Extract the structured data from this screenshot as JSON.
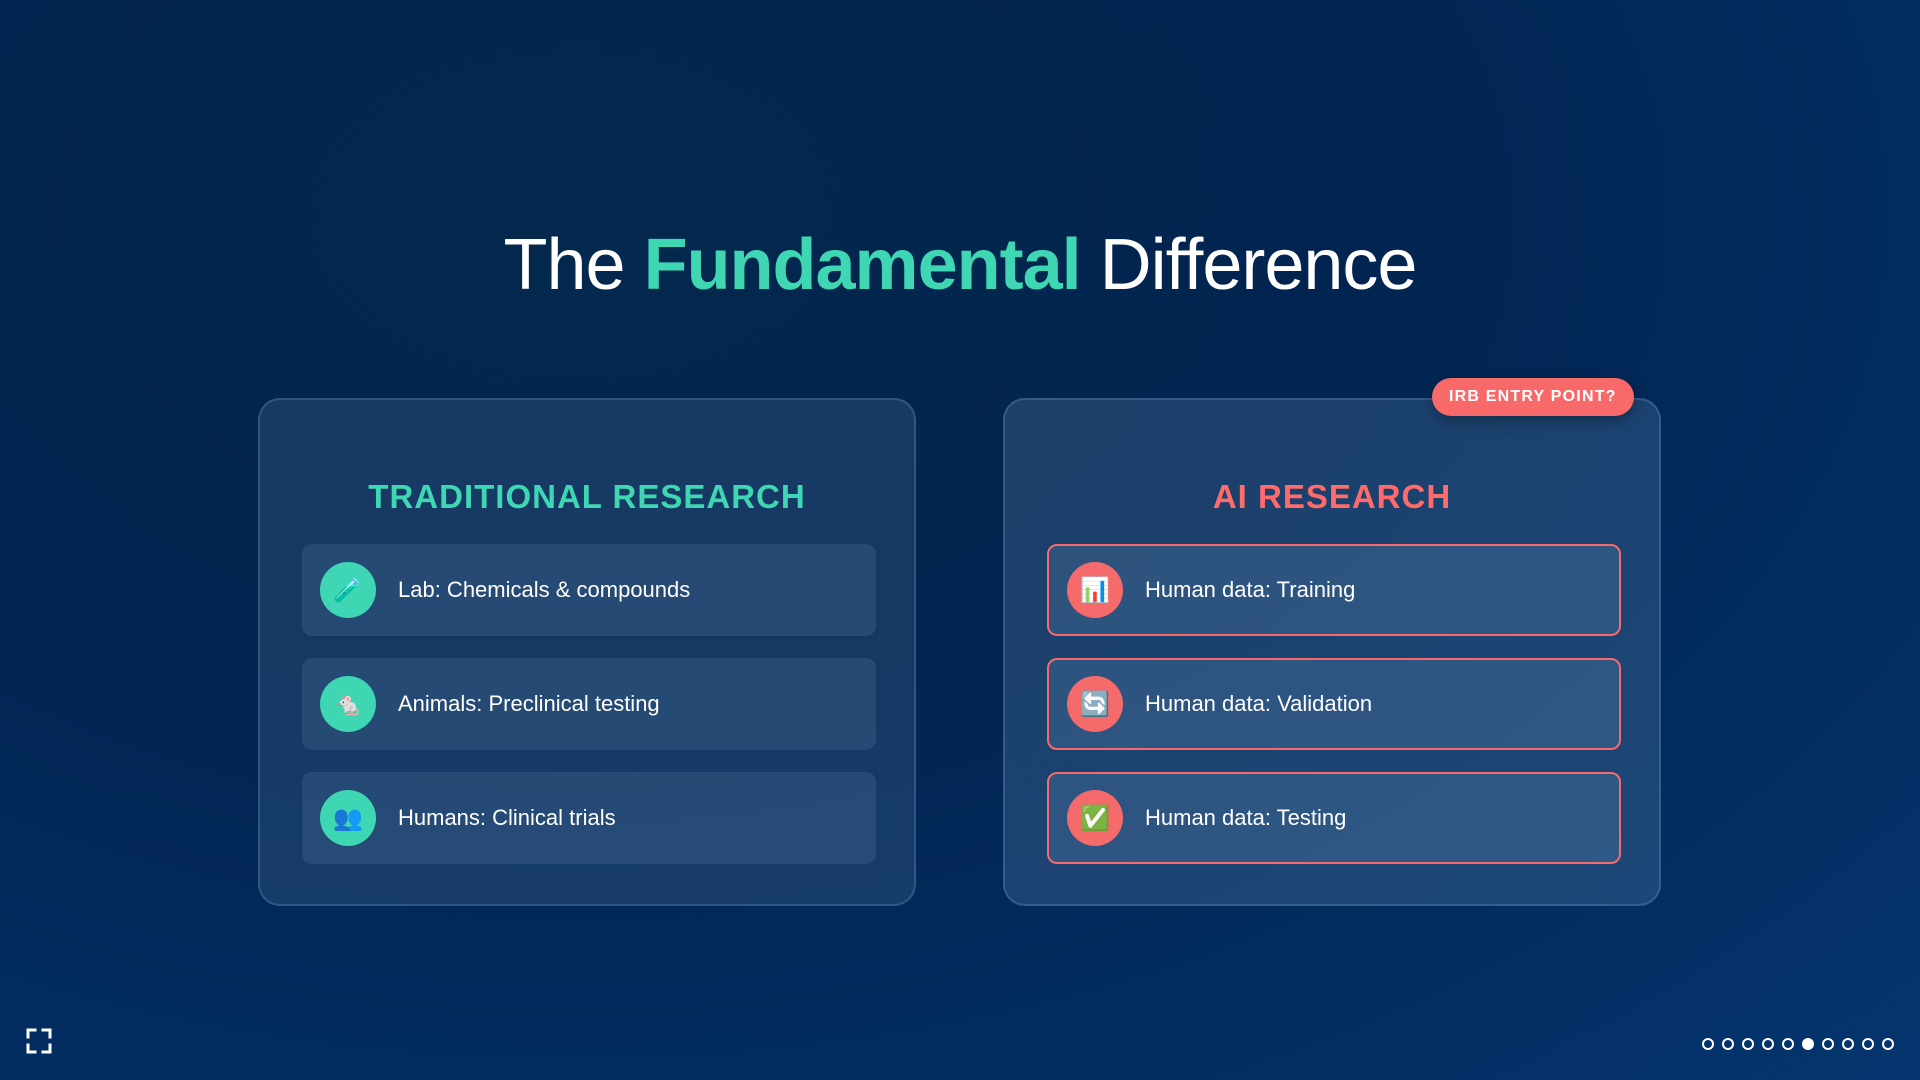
{
  "title": {
    "part1": "The ",
    "accent": "Fundamental",
    "part2": " Difference"
  },
  "traditional": {
    "heading": "TRADITIONAL RESEARCH",
    "items": [
      {
        "icon": "test-tube-icon",
        "glyph": "🧪",
        "label": "Lab: Chemicals & compounds"
      },
      {
        "icon": "rat-icon",
        "glyph": "🐁",
        "label": "Animals: Preclinical testing"
      },
      {
        "icon": "people-icon",
        "glyph": "👥",
        "label": "Humans: Clinical trials"
      }
    ]
  },
  "ai": {
    "heading": "AI RESEARCH",
    "badge": "IRB ENTRY POINT?",
    "items": [
      {
        "icon": "bar-chart-icon",
        "glyph": "📊",
        "label": "Human data: Training"
      },
      {
        "icon": "refresh-icon",
        "glyph": "🔄",
        "label": "Human data: Validation"
      },
      {
        "icon": "check-icon",
        "glyph": "✅",
        "label": "Human data: Testing"
      }
    ]
  },
  "navigation": {
    "total_slides": 10,
    "current_slide": 6
  },
  "colors": {
    "accent_teal": "#3ed6b3",
    "accent_red": "#f56a6a",
    "background": "#032a58"
  }
}
